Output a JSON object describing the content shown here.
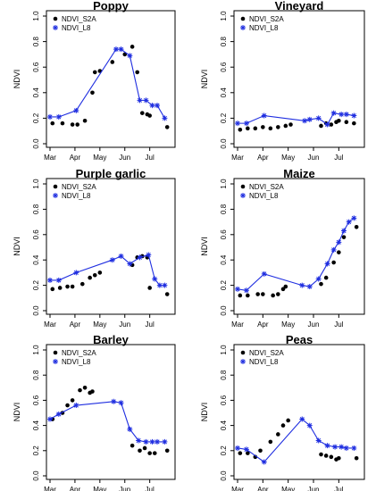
{
  "chart_data": [
    {
      "type": "scatter",
      "title": "Poppy",
      "ylabel": "NDVI",
      "ylim": [
        0,
        1.0
      ],
      "yticks": [
        "0.0",
        "0.2",
        "0.4",
        "0.6",
        "0.8",
        "1.0"
      ],
      "xticks": [
        "Mar",
        "Apr",
        "May",
        "Jun",
        "Jul"
      ],
      "legend": "top-left",
      "series": [
        {
          "name": "NDVI_S2A",
          "marker": "dot",
          "color": "#000000",
          "x": [
            0.1,
            0.5,
            0.9,
            1.1,
            1.4,
            1.7,
            1.8,
            2.0,
            2.5,
            3.0,
            3.3,
            3.5,
            3.7,
            3.9,
            4.0,
            4.7
          ],
          "y": [
            0.16,
            0.16,
            0.15,
            0.15,
            0.18,
            0.4,
            0.56,
            0.57,
            0.64,
            0.7,
            0.76,
            0.56,
            0.24,
            0.23,
            0.22,
            0.13
          ]
        },
        {
          "name": "NDVI_L8",
          "marker": "star",
          "color": "#1f2ee0",
          "line": true,
          "x": [
            0.0,
            0.35,
            1.05,
            2.65,
            2.85,
            3.2,
            3.6,
            3.85,
            4.1,
            4.3,
            4.6
          ],
          "y": [
            0.21,
            0.21,
            0.26,
            0.74,
            0.74,
            0.69,
            0.34,
            0.34,
            0.3,
            0.3,
            0.2
          ]
        }
      ]
    },
    {
      "type": "scatter",
      "title": "Vineyard",
      "ylabel": "NDVI",
      "ylim": [
        0,
        1.0
      ],
      "yticks": [
        "0.0",
        "0.2",
        "0.4",
        "0.6",
        "0.8",
        "1.0"
      ],
      "xticks": [
        "Mar",
        "Apr",
        "May",
        "Jun",
        "Jul"
      ],
      "legend": "top-left",
      "series": [
        {
          "name": "NDVI_S2A",
          "marker": "dot",
          "color": "#000000",
          "x": [
            0.1,
            0.4,
            0.7,
            1.0,
            1.3,
            1.6,
            1.9,
            2.1,
            3.3,
            3.5,
            3.7,
            3.9,
            4.0,
            4.3,
            4.6
          ],
          "y": [
            0.11,
            0.12,
            0.12,
            0.13,
            0.12,
            0.13,
            0.14,
            0.15,
            0.14,
            0.16,
            0.15,
            0.17,
            0.18,
            0.17,
            0.16
          ]
        },
        {
          "name": "NDVI_L8",
          "marker": "star",
          "color": "#1f2ee0",
          "line": true,
          "x": [
            0.0,
            0.35,
            1.05,
            2.65,
            2.85,
            3.2,
            3.55,
            3.8,
            4.1,
            4.3,
            4.6
          ],
          "y": [
            0.16,
            0.16,
            0.22,
            0.18,
            0.19,
            0.2,
            0.15,
            0.24,
            0.23,
            0.23,
            0.22
          ]
        }
      ]
    },
    {
      "type": "scatter",
      "title": "Purple garlic",
      "ylabel": "NDVI",
      "ylim": [
        0,
        1.0
      ],
      "yticks": [
        "0.0",
        "0.2",
        "0.4",
        "0.6",
        "0.8",
        "1.0"
      ],
      "xticks": [
        "Mar",
        "Apr",
        "May",
        "Jun",
        "Jul"
      ],
      "legend": "top-left",
      "series": [
        {
          "name": "NDVI_S2A",
          "marker": "dot",
          "color": "#000000",
          "x": [
            0.1,
            0.4,
            0.7,
            0.9,
            1.3,
            1.6,
            1.8,
            2.0,
            3.3,
            3.5,
            3.7,
            3.9,
            4.0,
            4.7
          ],
          "y": [
            0.17,
            0.18,
            0.19,
            0.19,
            0.21,
            0.26,
            0.28,
            0.3,
            0.36,
            0.42,
            0.43,
            0.42,
            0.18,
            0.13
          ]
        },
        {
          "name": "NDVI_L8",
          "marker": "star",
          "color": "#1f2ee0",
          "line": true,
          "x": [
            0.0,
            0.35,
            1.05,
            2.5,
            2.85,
            3.2,
            3.6,
            3.95,
            4.2,
            4.4,
            4.6
          ],
          "y": [
            0.24,
            0.24,
            0.3,
            0.4,
            0.43,
            0.37,
            0.42,
            0.44,
            0.25,
            0.2,
            0.2
          ]
        }
      ]
    },
    {
      "type": "scatter",
      "title": "Maize",
      "ylabel": "NDVI",
      "ylim": [
        0,
        1.0
      ],
      "yticks": [
        "0.0",
        "0.2",
        "0.4",
        "0.6",
        "0.8",
        "1.0"
      ],
      "xticks": [
        "Mar",
        "Apr",
        "May",
        "Jun",
        "Jul"
      ],
      "legend": "top-left",
      "series": [
        {
          "name": "NDVI_S2A",
          "marker": "dot",
          "color": "#000000",
          "x": [
            0.1,
            0.4,
            0.8,
            1.0,
            1.4,
            1.6,
            1.8,
            1.9,
            3.3,
            3.5,
            3.8,
            4.0,
            4.2,
            4.7
          ],
          "y": [
            0.12,
            0.12,
            0.13,
            0.13,
            0.12,
            0.13,
            0.17,
            0.19,
            0.21,
            0.26,
            0.38,
            0.46,
            0.58,
            0.66
          ]
        },
        {
          "name": "NDVI_L8",
          "marker": "star",
          "color": "#1f2ee0",
          "line": true,
          "x": [
            0.0,
            0.35,
            1.05,
            2.55,
            2.85,
            3.2,
            3.55,
            3.8,
            4.0,
            4.2,
            4.4,
            4.6
          ],
          "y": [
            0.17,
            0.16,
            0.29,
            0.2,
            0.19,
            0.25,
            0.37,
            0.48,
            0.54,
            0.63,
            0.7,
            0.73
          ]
        }
      ]
    },
    {
      "type": "scatter",
      "title": "Barley",
      "ylabel": "NDVI",
      "ylim": [
        0,
        1.0
      ],
      "yticks": [
        "0.0",
        "0.2",
        "0.4",
        "0.6",
        "0.8",
        "1.0"
      ],
      "xticks": [
        "Mar",
        "Apr",
        "May",
        "Jun",
        "Jul"
      ],
      "legend": "top-left",
      "series": [
        {
          "name": "NDVI_S2A",
          "marker": "dot",
          "color": "#000000",
          "x": [
            0.1,
            0.5,
            0.7,
            0.9,
            1.2,
            1.4,
            1.6,
            1.7,
            3.3,
            3.6,
            3.8,
            4.0,
            4.2,
            4.7
          ],
          "y": [
            0.45,
            0.5,
            0.56,
            0.6,
            0.68,
            0.7,
            0.66,
            0.67,
            0.24,
            0.2,
            0.22,
            0.18,
            0.18,
            0.2
          ]
        },
        {
          "name": "NDVI_L8",
          "marker": "star",
          "color": "#1f2ee0",
          "line": true,
          "x": [
            0.0,
            0.35,
            1.05,
            2.55,
            2.85,
            3.2,
            3.55,
            3.85,
            4.1,
            4.3,
            4.6
          ],
          "y": [
            0.45,
            0.49,
            0.56,
            0.59,
            0.58,
            0.37,
            0.28,
            0.27,
            0.27,
            0.27,
            0.27
          ]
        }
      ]
    },
    {
      "type": "scatter",
      "title": "Peas",
      "ylabel": "NDVI",
      "ylim": [
        0,
        1.0
      ],
      "yticks": [
        "0.0",
        "0.2",
        "0.4",
        "0.6",
        "0.8",
        "1.0"
      ],
      "xticks": [
        "Mar",
        "Apr",
        "May",
        "Jun",
        "Jul"
      ],
      "legend": "top-left",
      "series": [
        {
          "name": "NDVI_S2A",
          "marker": "dot",
          "color": "#000000",
          "x": [
            0.1,
            0.4,
            0.7,
            0.9,
            1.3,
            1.6,
            1.8,
            2.0,
            3.3,
            3.5,
            3.7,
            3.9,
            4.0,
            4.7
          ],
          "y": [
            0.18,
            0.18,
            0.15,
            0.2,
            0.27,
            0.33,
            0.4,
            0.44,
            0.17,
            0.16,
            0.15,
            0.13,
            0.14,
            0.14
          ]
        },
        {
          "name": "NDVI_L8",
          "marker": "star",
          "color": "#1f2ee0",
          "line": true,
          "x": [
            0.0,
            0.35,
            1.05,
            2.55,
            2.85,
            3.2,
            3.55,
            3.85,
            4.1,
            4.3,
            4.6
          ],
          "y": [
            0.22,
            0.21,
            0.11,
            0.45,
            0.4,
            0.28,
            0.24,
            0.23,
            0.23,
            0.22,
            0.22
          ]
        }
      ]
    }
  ]
}
